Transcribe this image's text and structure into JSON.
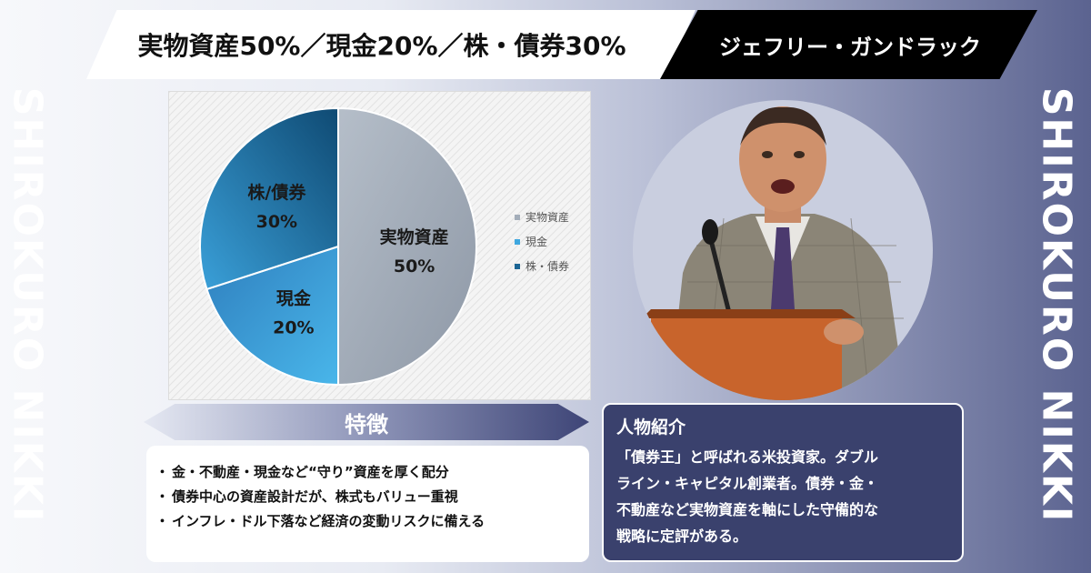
{
  "header": {
    "title": "実物資産50%／現金20%／株・債券30%",
    "person_name": "ジェフリー・ガンドラック"
  },
  "side_text": {
    "left": "SHIROKURO NIKKI",
    "right": "SHIROKURO NIKKI"
  },
  "chart_data": {
    "type": "pie",
    "categories": [
      "実物資産",
      "現金",
      "株・債券"
    ],
    "values": [
      50,
      20,
      30
    ],
    "slice_labels": [
      {
        "name": "実物資産",
        "pct": "50%"
      },
      {
        "name": "現金",
        "pct": "20%"
      },
      {
        "name": "株/債券",
        "pct": "30%"
      }
    ],
    "colors": [
      "#a3adb9",
      "#3ea7df",
      "#1b6594"
    ],
    "legend": [
      "実物資産",
      "現金",
      "株・債券"
    ],
    "legend_position": "right"
  },
  "features": {
    "title": "特徴",
    "items": [
      "金・不動産・現金など“守り”資産を厚く配分",
      "債券中心の資産設計だが、株式もバリュー重視",
      "インフレ・ドル下落など経済の変動リスクに備える"
    ],
    "bullet": "・"
  },
  "profile": {
    "title": "人物紹介",
    "lines": [
      "「債券王」と呼ばれる米投資家。ダブル",
      "ライン・キャピタル創業者。債券・金・",
      "不動産など実物資産を軸にした守備的な",
      "戦略に定評がある。"
    ]
  },
  "icons": {
    "portrait": "speaker-at-podium-illustration"
  }
}
